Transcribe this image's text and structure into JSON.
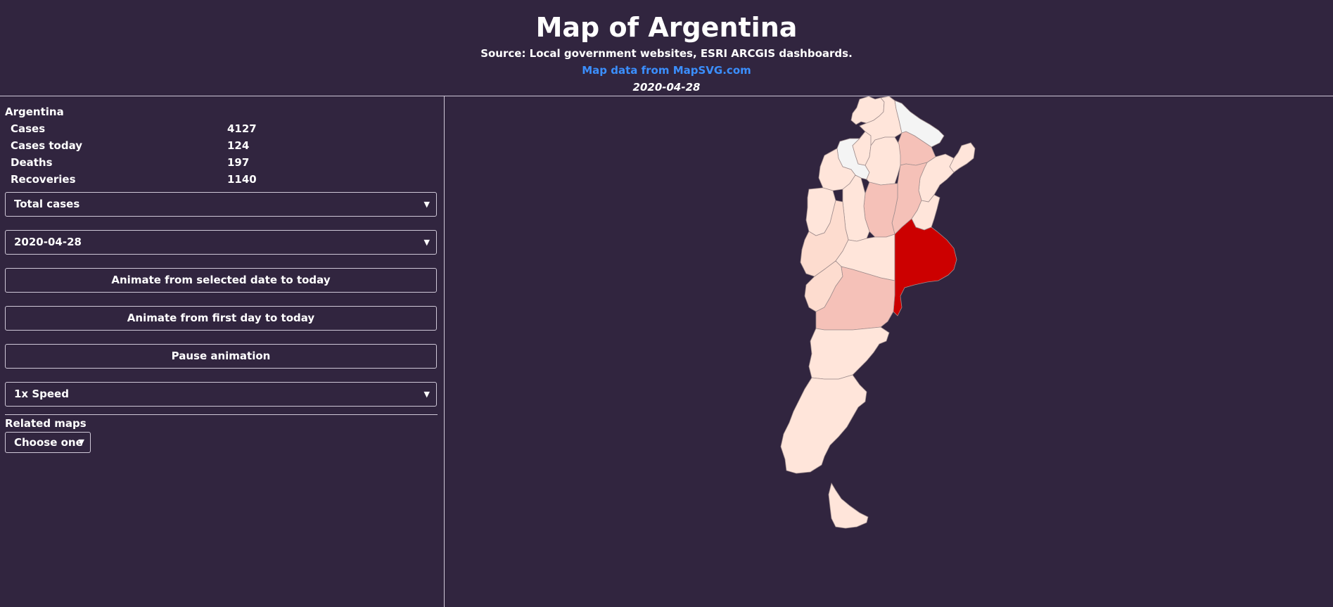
{
  "header": {
    "title": "Map of Argentina",
    "source": "Source: Local government websites, ESRI ARCGIS dashboards.",
    "map_link": "Map data from MapSVG.com",
    "date": "2020-04-28"
  },
  "summary": {
    "region": "Argentina",
    "stats": [
      {
        "label": "Cases",
        "value": "4127"
      },
      {
        "label": "Cases today",
        "value": "124"
      },
      {
        "label": "Deaths",
        "value": "197"
      },
      {
        "label": "Recoveries",
        "value": "1140"
      }
    ]
  },
  "controls": {
    "metric_select": "Total cases",
    "date_select": "2020-04-28",
    "animate_selected_label": "Animate from selected date to today",
    "animate_first_label": "Animate from first day to today",
    "pause_label": "Pause animation",
    "speed_select": "1x Speed"
  },
  "related": {
    "label": "Related maps",
    "select": "Choose one"
  },
  "colors": {
    "background": "#31253f",
    "link": "#3b8fff",
    "max_cases": "#cc0000",
    "high": "#f5c1b8",
    "mid": "#fddccf",
    "low": "#ffe5da",
    "none": "#f4f4f4"
  }
}
